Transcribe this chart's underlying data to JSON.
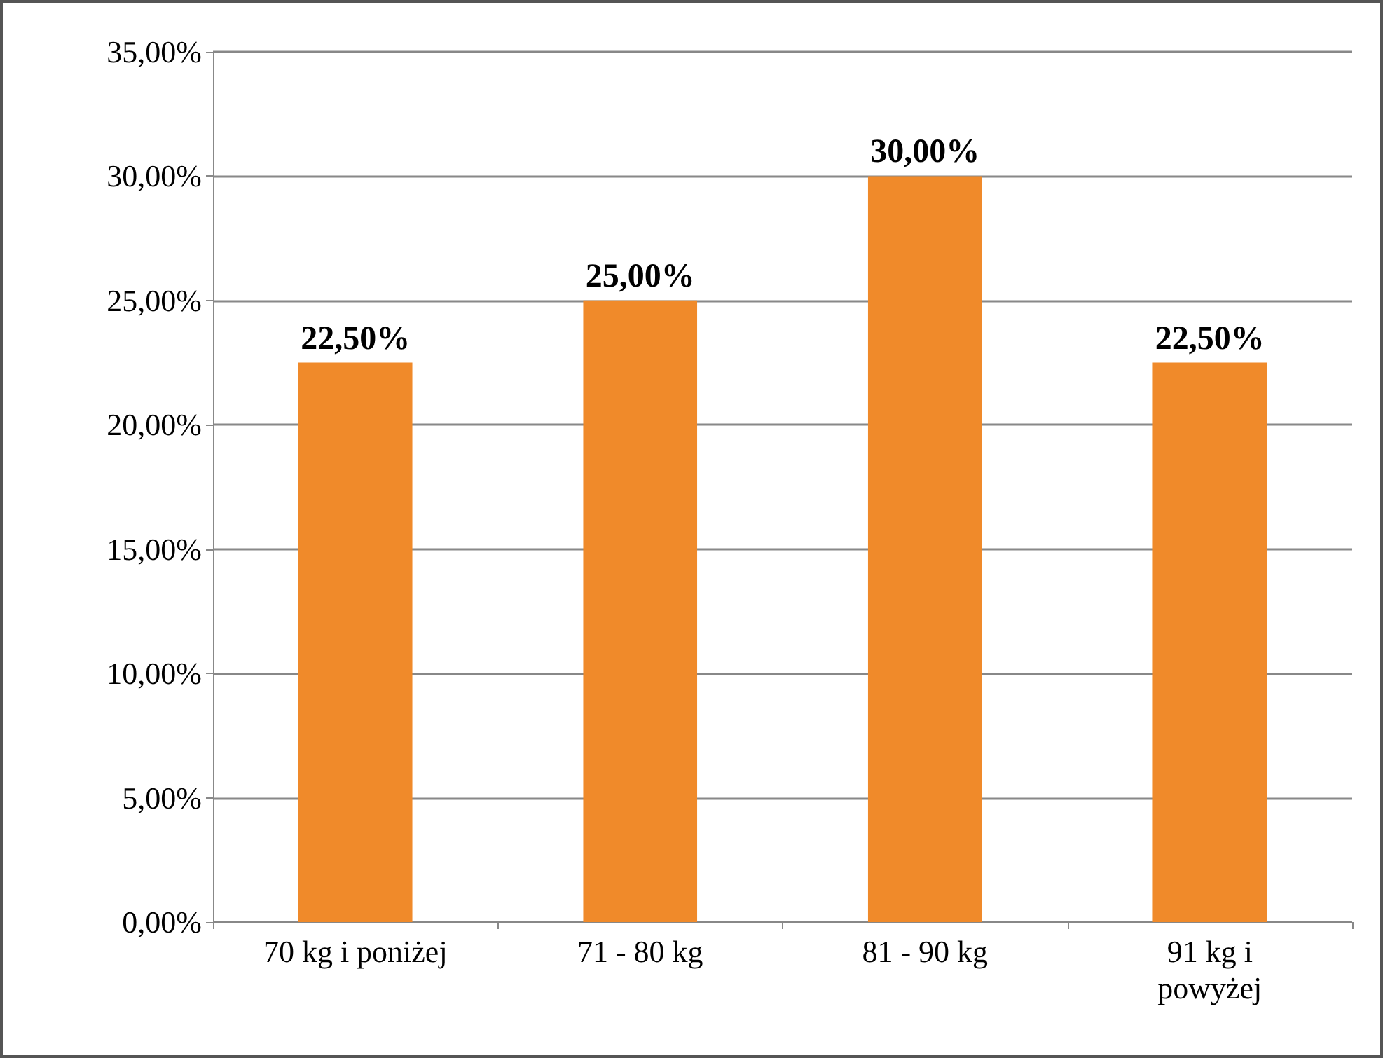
{
  "chart_data": {
    "type": "bar",
    "categories": [
      "70 kg i poniżej",
      "71 - 80 kg",
      "81 - 90 kg",
      "91 kg i powyżej"
    ],
    "values": [
      22.5,
      25,
      30,
      22.5
    ],
    "value_labels": [
      "22,50%",
      "25,00%",
      "30,00%",
      "22,50%"
    ],
    "color": "#f08a2a",
    "ylim": [
      0,
      35
    ],
    "yticks": [
      {
        "value": 0,
        "label": "0,00%"
      },
      {
        "value": 5,
        "label": "5,00%"
      },
      {
        "value": 10,
        "label": "10,00%"
      },
      {
        "value": 15,
        "label": "15,00%"
      },
      {
        "value": 20,
        "label": "20,00%"
      },
      {
        "value": 25,
        "label": "25,00%"
      },
      {
        "value": 30,
        "label": "30,00%"
      },
      {
        "value": 35,
        "label": "35,00%"
      }
    ],
    "grid": "y"
  }
}
